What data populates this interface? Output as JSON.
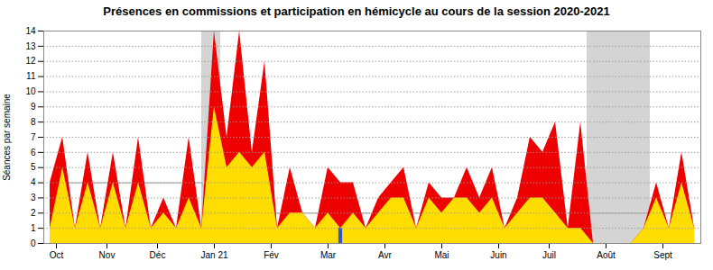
{
  "chart_data": {
    "type": "area",
    "title": "Présences en commissions et participation en hémicycle au cours de la session 2020-2021",
    "ylabel": "Séances par semaine",
    "x": [
      0,
      1,
      2,
      3,
      4,
      5,
      6,
      7,
      8,
      9,
      10,
      11,
      12,
      13,
      14,
      15,
      16,
      17,
      18,
      19,
      20,
      21,
      22,
      23,
      24,
      25,
      26,
      27,
      28,
      29,
      30,
      31,
      32,
      33,
      34,
      35,
      36,
      37,
      38,
      39,
      40,
      41,
      42,
      43,
      44,
      45,
      46,
      47,
      48,
      49,
      50,
      51
    ],
    "xlim": [
      -0.5,
      51.5
    ],
    "xticks": [
      {
        "value": 0.5,
        "label": "Oct"
      },
      {
        "value": 4.5,
        "label": "Nov"
      },
      {
        "value": 8.5,
        "label": "Déc"
      },
      {
        "value": 13.0,
        "label": "Jan 21"
      },
      {
        "value": 17.5,
        "label": "Fév"
      },
      {
        "value": 22.0,
        "label": "Mar"
      },
      {
        "value": 26.5,
        "label": "Avr"
      },
      {
        "value": 31.0,
        "label": "Mai"
      },
      {
        "value": 35.5,
        "label": "Juin"
      },
      {
        "value": 39.5,
        "label": "Juil"
      },
      {
        "value": 44.0,
        "label": "Août"
      },
      {
        "value": 48.5,
        "label": "Sept"
      }
    ],
    "ylim": [
      0,
      14
    ],
    "yticks": [
      0,
      1,
      2,
      3,
      4,
      5,
      6,
      7,
      8,
      9,
      10,
      11,
      12,
      13,
      14
    ],
    "grid": true,
    "shaded_ranges": [
      [
        12.0,
        13.5
      ],
      [
        42.5,
        47.5
      ]
    ],
    "series": [
      {
        "type": "line",
        "color": "#b0b0b0",
        "values": [
          4,
          4,
          4,
          4,
          4,
          4,
          4,
          4,
          4,
          4,
          4,
          4,
          4,
          2,
          2,
          2,
          2,
          2,
          2,
          2,
          2,
          2,
          2,
          2,
          2,
          2,
          2,
          2,
          2,
          2,
          2,
          2,
          2,
          2,
          2,
          2,
          2,
          2,
          2,
          2,
          2,
          2,
          2,
          2,
          2,
          2,
          2,
          2,
          2,
          2,
          2,
          2
        ]
      },
      {
        "type": "area",
        "color": "#ee0000",
        "values": [
          4,
          7,
          1,
          6,
          1,
          6,
          1,
          7,
          1,
          3,
          1,
          7,
          1,
          14,
          7,
          14,
          6,
          12,
          1,
          5,
          2,
          1,
          5,
          4,
          4,
          1,
          3,
          4,
          5,
          1,
          4,
          3,
          3,
          5,
          3,
          5,
          1,
          3,
          7,
          6,
          8,
          1,
          8,
          0,
          0,
          0,
          0,
          1,
          4,
          1,
          6,
          1
        ]
      },
      {
        "type": "area",
        "color": "#ffdd00",
        "values": [
          1,
          5,
          1,
          4,
          1,
          4,
          1,
          4,
          1,
          2,
          1,
          3,
          1,
          9,
          5,
          6,
          5,
          6,
          1,
          2,
          2,
          1,
          2,
          1,
          2,
          1,
          2,
          3,
          3,
          1,
          3,
          2,
          3,
          3,
          2,
          3,
          1,
          2,
          3,
          3,
          2,
          1,
          1,
          0,
          0,
          0,
          0,
          1,
          3,
          1,
          4,
          1
        ]
      },
      {
        "type": "bar",
        "color": "#3355cc",
        "x": [
          23
        ],
        "values": [
          1
        ]
      }
    ]
  }
}
